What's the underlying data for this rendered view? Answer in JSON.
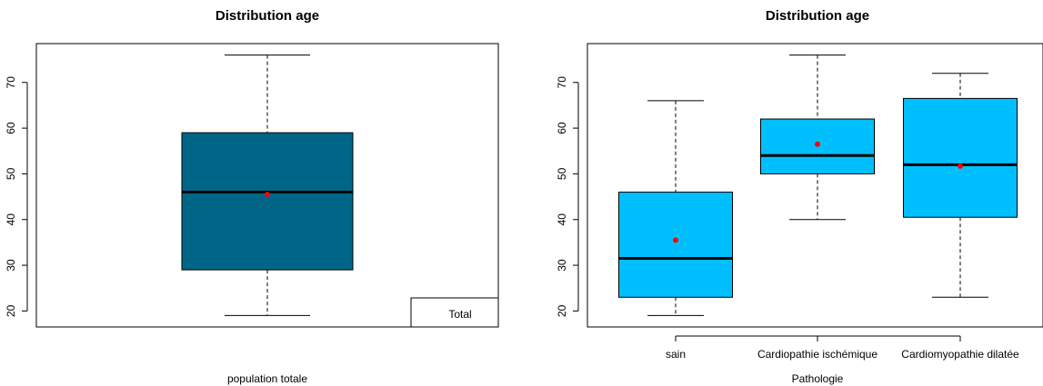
{
  "chart_data": [
    {
      "type": "box",
      "title": "Distribution age",
      "xlabel": "population totale",
      "ylabel": "",
      "ylim": [
        16.5,
        78.5
      ],
      "yticks": [
        20,
        30,
        40,
        50,
        60,
        70
      ],
      "categories": [
        ""
      ],
      "boxes": [
        {
          "min": 19,
          "q1": 29,
          "median": 46,
          "q3": 59,
          "max": 76,
          "mean": 45.5,
          "fill": "#006688"
        }
      ],
      "legend": {
        "entries": [
          "Total"
        ],
        "position": "bottom-right"
      },
      "colors": {
        "mean_point": "#ff0000"
      }
    },
    {
      "type": "box",
      "title": "Distribution age",
      "xlabel": "Pathologie",
      "ylabel": "",
      "ylim": [
        16.5,
        78.5
      ],
      "yticks": [
        20,
        30,
        40,
        50,
        60,
        70
      ],
      "categories": [
        "sain",
        "Cardiopathie ischémique",
        "Cardiomyopathie dilatée"
      ],
      "boxes": [
        {
          "min": 19,
          "q1": 23,
          "median": 31.5,
          "q3": 46,
          "max": 66,
          "mean": 35.5,
          "fill": "#00bfff"
        },
        {
          "min": 40,
          "q1": 50,
          "median": 54,
          "q3": 62,
          "max": 76,
          "mean": 56.5,
          "fill": "#00bfff"
        },
        {
          "min": 23,
          "q1": 40.5,
          "median": 52,
          "q3": 66.5,
          "max": 72,
          "mean": 51.7,
          "fill": "#00bfff"
        }
      ],
      "colors": {
        "mean_point": "#ff0000"
      }
    }
  ]
}
